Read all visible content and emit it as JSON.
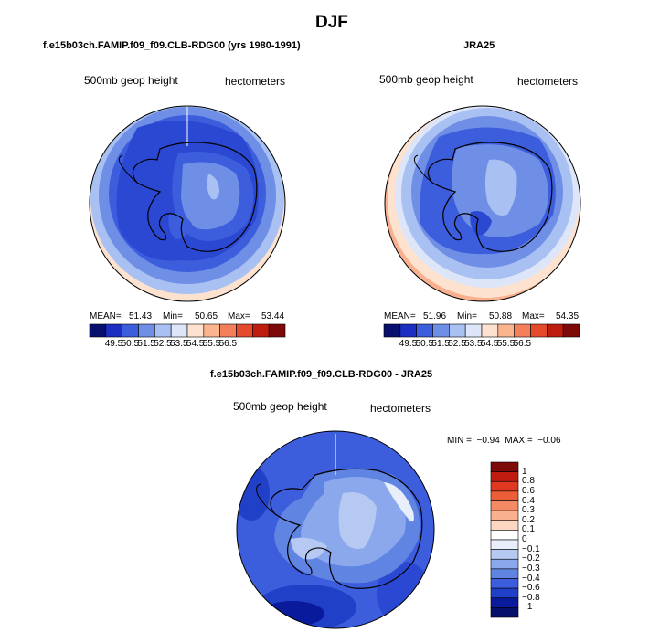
{
  "title": "DJF",
  "panels": [
    {
      "subtitle": "f.e15b03ch.FAMIP.f09_f09.CLB-RDG00 (yrs 1980-1991)",
      "left_label": "500mb geop height",
      "right_label": "hectometers",
      "stats": {
        "mean_label": "MEAN=",
        "mean": "51.43",
        "min_label": "Min=",
        "min": "50.65",
        "max_label": "Max=",
        "max": "53.44"
      }
    },
    {
      "subtitle": "JRA25",
      "left_label": "500mb geop height",
      "right_label": "hectometers",
      "stats": {
        "mean_label": "MEAN=",
        "mean": "51.96",
        "min_label": "Min=",
        "min": "50.88",
        "max_label": "Max=",
        "max": "54.35"
      }
    },
    {
      "subtitle": "f.e15b03ch.FAMIP.f09_f09.CLB-RDG00 - JRA25",
      "left_label": "500mb geop height",
      "right_label": "hectometers",
      "stats_text": "MIN =  −0.94  MAX =  −0.06"
    }
  ],
  "horizontal_colorbar": {
    "labels": [
      "49.5",
      "50.5",
      "51.5",
      "52.5",
      "53.5",
      "54.5",
      "55.5",
      "56.5"
    ],
    "colors": [
      "#08106e",
      "#1c2fc2",
      "#3c5ddc",
      "#6f8fe6",
      "#a9c0f2",
      "#dde6f8",
      "#fde2cf",
      "#fbb58e",
      "#f3805a",
      "#e44b2d",
      "#bf1c10",
      "#7d0a08"
    ]
  },
  "vertical_colorbar": {
    "labels": [
      "1",
      "0.8",
      "0.6",
      "0.4",
      "0.3",
      "0.2",
      "0.1",
      "0",
      "−0.1",
      "−0.2",
      "−0.3",
      "−0.4",
      "−0.6",
      "−0.8",
      "−1"
    ],
    "colors": [
      "#7d0a08",
      "#bf1c10",
      "#e0371f",
      "#ec5e38",
      "#f48a64",
      "#f9b08f",
      "#fcd6c1",
      "#ffffff",
      "#e8effb",
      "#b5c9f2",
      "#8aa8eb",
      "#5f84e2",
      "#3c5ddc",
      "#2140c8",
      "#0a1a9c",
      "#06106a"
    ]
  }
}
